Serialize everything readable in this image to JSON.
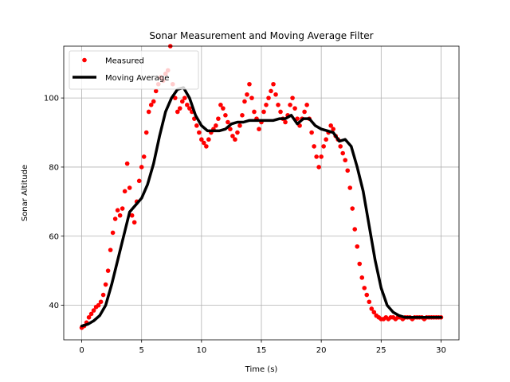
{
  "chart_data": {
    "type": "line",
    "title": "Sonar Measurement and Moving Average Filter",
    "xlabel": "Time (s)",
    "ylabel": "Sonar Altitude",
    "xlim": [
      -1.5,
      31.5
    ],
    "ylim": [
      30,
      115
    ],
    "xticks": [
      0,
      5,
      10,
      15,
      20,
      25,
      30
    ],
    "yticks": [
      40,
      60,
      80,
      100
    ],
    "grid": true,
    "legend": "top-left",
    "series": [
      {
        "name": "Measured",
        "style": "points",
        "color": "#ff0000",
        "x": [
          0.0,
          0.2,
          0.4,
          0.6,
          0.8,
          1.0,
          1.2,
          1.4,
          1.6,
          1.8,
          2.0,
          2.2,
          2.4,
          2.6,
          2.8,
          3.0,
          3.2,
          3.4,
          3.6,
          3.8,
          4.0,
          4.2,
          4.4,
          4.6,
          4.8,
          5.0,
          5.2,
          5.4,
          5.6,
          5.8,
          6.0,
          6.2,
          6.4,
          6.6,
          6.8,
          7.0,
          7.2,
          7.4,
          7.6,
          7.8,
          8.0,
          8.2,
          8.4,
          8.6,
          8.8,
          9.0,
          9.2,
          9.4,
          9.6,
          9.8,
          10.0,
          10.2,
          10.4,
          10.6,
          10.8,
          11.0,
          11.2,
          11.4,
          11.6,
          11.8,
          12.0,
          12.2,
          12.4,
          12.6,
          12.8,
          13.0,
          13.2,
          13.4,
          13.6,
          13.8,
          14.0,
          14.2,
          14.4,
          14.6,
          14.8,
          15.0,
          15.2,
          15.4,
          15.6,
          15.8,
          16.0,
          16.2,
          16.4,
          16.6,
          16.8,
          17.0,
          17.2,
          17.4,
          17.6,
          17.8,
          18.0,
          18.2,
          18.4,
          18.6,
          18.8,
          19.0,
          19.2,
          19.4,
          19.6,
          19.8,
          20.0,
          20.2,
          20.4,
          20.6,
          20.8,
          21.0,
          21.2,
          21.4,
          21.6,
          21.8,
          22.0,
          22.2,
          22.4,
          22.6,
          22.8,
          23.0,
          23.2,
          23.4,
          23.6,
          23.8,
          24.0,
          24.2,
          24.4,
          24.6,
          24.8,
          25.0,
          25.2,
          25.4,
          25.6,
          25.8,
          26.0,
          26.2,
          26.4,
          26.6,
          26.8,
          27.0,
          27.2,
          27.4,
          27.6,
          27.8,
          28.0,
          28.2,
          28.4,
          28.6,
          28.8,
          29.0,
          29.2,
          29.4,
          29.6,
          29.8,
          30.0
        ],
        "values": [
          33.5,
          34.0,
          35.0,
          36.5,
          37.5,
          38.5,
          39.5,
          40.0,
          41.0,
          43.0,
          46.0,
          50.0,
          56.0,
          61.0,
          65.0,
          67.5,
          66.0,
          68.0,
          73.0,
          81.0,
          74.0,
          66.0,
          64.0,
          70.0,
          76.0,
          80.0,
          83.0,
          90.0,
          96.0,
          98.0,
          99.0,
          102.0,
          104.0,
          106.0,
          105.0,
          107.0,
          108.0,
          115.0,
          104.0,
          100.0,
          96.0,
          97.0,
          99.0,
          100.0,
          98.0,
          97.0,
          96.0,
          94.0,
          92.0,
          90.0,
          88.0,
          87.0,
          86.0,
          88.0,
          90.0,
          91.0,
          92.0,
          94.0,
          98.0,
          97.0,
          95.0,
          93.0,
          91.0,
          89.0,
          88.0,
          90.0,
          92.0,
          95.0,
          99.0,
          101.0,
          104.0,
          100.0,
          96.0,
          94.0,
          91.0,
          93.0,
          96.0,
          98.0,
          100.0,
          102.0,
          104.0,
          101.0,
          98.0,
          96.0,
          94.0,
          93.0,
          95.0,
          98.0,
          100.0,
          97.0,
          94.0,
          92.0,
          94.0,
          96.0,
          98.0,
          94.0,
          90.0,
          86.0,
          83.0,
          80.0,
          83.0,
          86.0,
          88.0,
          90.0,
          92.0,
          91.0,
          89.0,
          88.0,
          86.0,
          84.0,
          82.0,
          79.0,
          74.0,
          68.0,
          62.0,
          57.0,
          52.0,
          48.0,
          45.0,
          43.0,
          41.0,
          39.0,
          38.0,
          37.0,
          36.5,
          36.0,
          36.0,
          36.5,
          36.0,
          36.5,
          36.5,
          36.0,
          36.5,
          36.5,
          36.0,
          36.5,
          36.5,
          36.5,
          36.0,
          36.5,
          36.5,
          36.5,
          36.5,
          36.0,
          36.5,
          36.5,
          36.5,
          36.5,
          36.5,
          36.5,
          36.5
        ]
      },
      {
        "name": "Moving Average",
        "style": "line",
        "color": "#000000",
        "x": [
          0.0,
          0.5,
          1.0,
          1.5,
          2.0,
          2.5,
          3.0,
          3.5,
          4.0,
          4.5,
          5.0,
          5.5,
          6.0,
          6.5,
          7.0,
          7.5,
          8.0,
          8.5,
          9.0,
          9.5,
          10.0,
          10.5,
          11.0,
          11.5,
          12.0,
          12.5,
          13.0,
          13.5,
          14.0,
          14.5,
          15.0,
          15.5,
          16.0,
          16.5,
          17.0,
          17.5,
          18.0,
          18.5,
          19.0,
          19.5,
          20.0,
          20.5,
          21.0,
          21.5,
          22.0,
          22.5,
          23.0,
          23.5,
          24.0,
          24.5,
          25.0,
          25.5,
          26.0,
          26.5,
          27.0,
          27.5,
          28.0,
          28.5,
          29.0,
          29.5,
          30.0
        ],
        "values": [
          34.0,
          34.5,
          35.5,
          37.0,
          40.0,
          46.0,
          53.0,
          60.0,
          67.0,
          69.0,
          71.0,
          75.0,
          81.0,
          89.0,
          96.0,
          100.0,
          102.5,
          103.0,
          100.0,
          95.0,
          92.0,
          90.5,
          90.5,
          90.5,
          91.0,
          92.5,
          93.0,
          93.0,
          93.5,
          93.5,
          93.5,
          93.5,
          93.5,
          94.0,
          94.0,
          95.0,
          92.5,
          94.0,
          94.0,
          92.0,
          91.0,
          90.5,
          90.0,
          87.5,
          88.0,
          86.0,
          80.0,
          73.0,
          63.0,
          53.0,
          45.0,
          40.0,
          38.0,
          37.0,
          36.5,
          36.5,
          36.5,
          36.5,
          36.5,
          36.5,
          36.5
        ]
      }
    ]
  }
}
